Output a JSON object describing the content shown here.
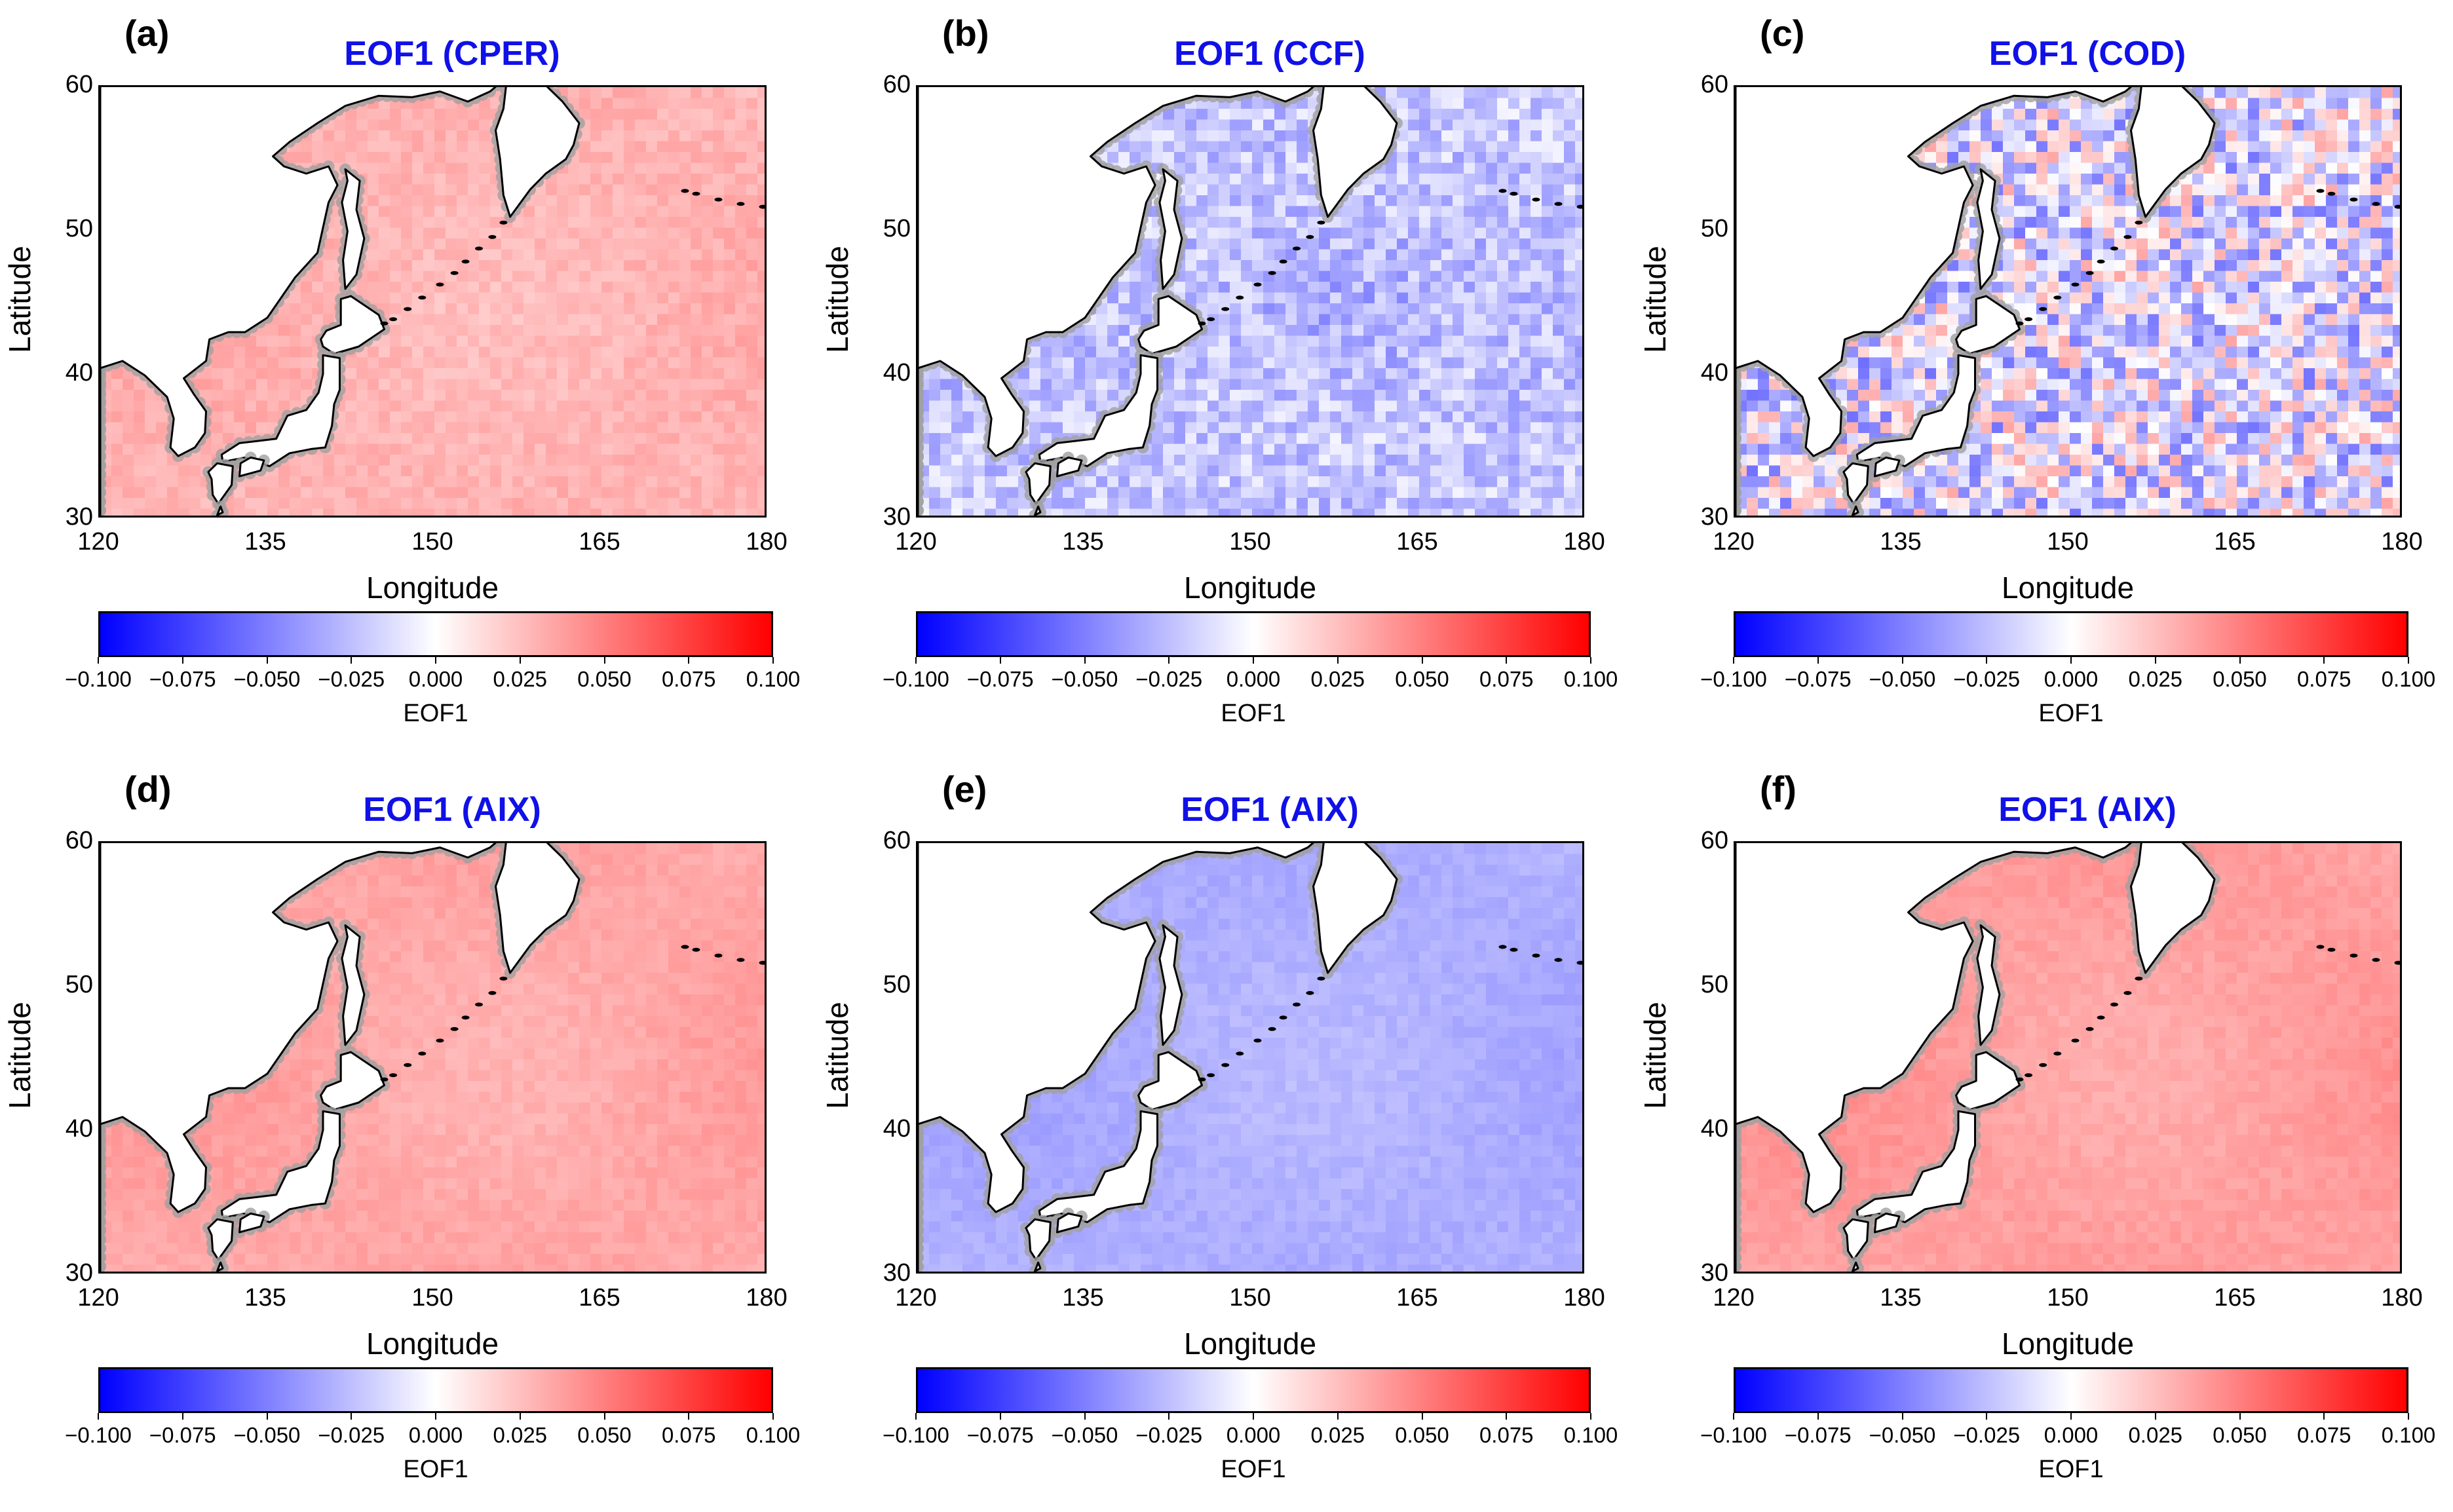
{
  "figure": {
    "colors": {
      "low": "#0000ff",
      "mid": "#ffffff",
      "high": "#ff0000",
      "title": "#1010e8",
      "land": "#ffffff",
      "coast_halo": "#a0a0a0"
    }
  },
  "chart_data": [
    {
      "type": "heatmap",
      "panel": "(a)",
      "title": "EOF1 (CPER)",
      "xlabel": "Longitude",
      "ylabel": "Latitude",
      "xticks": [
        "120",
        "135",
        "150",
        "165",
        "180"
      ],
      "yticks": [
        "30",
        "40",
        "50",
        "60"
      ],
      "xlim": [
        120,
        180
      ],
      "ylim": [
        30,
        60
      ],
      "colorbar": {
        "label": "EOF1",
        "range": [
          -0.1,
          0.1
        ],
        "ticks": [
          "−0.100",
          "−0.075",
          "−0.050",
          "−0.025",
          "0.000",
          "0.025",
          "0.050",
          "0.075",
          "0.100"
        ]
      },
      "field": {
        "mean": 0.03,
        "noise": 0.006
      }
    },
    {
      "type": "heatmap",
      "panel": "(b)",
      "title": "EOF1 (CCF)",
      "xlabel": "Longitude",
      "ylabel": "Latitude",
      "xticks": [
        "120",
        "135",
        "150",
        "165",
        "180"
      ],
      "yticks": [
        "30",
        "40",
        "50",
        "60"
      ],
      "xlim": [
        120,
        180
      ],
      "ylim": [
        30,
        60
      ],
      "colorbar": {
        "label": "EOF1",
        "range": [
          -0.1,
          0.1
        ],
        "ticks": [
          "−0.100",
          "−0.075",
          "−0.050",
          "−0.025",
          "0.000",
          "0.025",
          "0.050",
          "0.075",
          "0.100"
        ]
      },
      "field": {
        "mean": -0.022,
        "noise": 0.018
      }
    },
    {
      "type": "heatmap",
      "panel": "(c)",
      "title": "EOF1 (COD)",
      "xlabel": "Longitude",
      "ylabel": "Latitude",
      "xticks": [
        "120",
        "135",
        "150",
        "165",
        "180"
      ],
      "yticks": [
        "30",
        "40",
        "50",
        "60"
      ],
      "xlim": [
        120,
        180
      ],
      "ylim": [
        30,
        60
      ],
      "colorbar": {
        "label": "EOF1",
        "range": [
          -0.1,
          0.1
        ],
        "ticks": [
          "−0.100",
          "−0.075",
          "−0.050",
          "−0.025",
          "0.000",
          "0.025",
          "0.050",
          "0.075",
          "0.100"
        ]
      },
      "field": {
        "mean": -0.01,
        "noise": 0.045
      }
    },
    {
      "type": "heatmap",
      "panel": "(d)",
      "title": "EOF1 (AIX)",
      "xlabel": "Longitude",
      "ylabel": "Latitude",
      "xticks": [
        "120",
        "135",
        "150",
        "165",
        "180"
      ],
      "yticks": [
        "30",
        "40",
        "50",
        "60"
      ],
      "xlim": [
        120,
        180
      ],
      "ylim": [
        30,
        60
      ],
      "colorbar": {
        "label": "EOF1",
        "range": [
          -0.1,
          0.1
        ],
        "ticks": [
          "−0.100",
          "−0.075",
          "−0.050",
          "−0.025",
          "0.000",
          "0.025",
          "0.050",
          "0.075",
          "0.100"
        ]
      },
      "field": {
        "mean": 0.035,
        "noise": 0.004
      }
    },
    {
      "type": "heatmap",
      "panel": "(e)",
      "title": "EOF1 (AIX)",
      "xlabel": "Longitude",
      "ylabel": "Latitude",
      "xticks": [
        "120",
        "135",
        "150",
        "165",
        "180"
      ],
      "yticks": [
        "30",
        "40",
        "50",
        "60"
      ],
      "xlim": [
        120,
        180
      ],
      "ylim": [
        30,
        60
      ],
      "colorbar": {
        "label": "EOF1",
        "range": [
          -0.1,
          0.1
        ],
        "ticks": [
          "−0.100",
          "−0.075",
          "−0.050",
          "−0.025",
          "0.000",
          "0.025",
          "0.050",
          "0.075",
          "0.100"
        ]
      },
      "field": {
        "mean": -0.032,
        "noise": 0.004
      }
    },
    {
      "type": "heatmap",
      "panel": "(f)",
      "title": "EOF1 (AIX)",
      "xlabel": "Longitude",
      "ylabel": "Latitude",
      "xticks": [
        "120",
        "135",
        "150",
        "165",
        "180"
      ],
      "yticks": [
        "30",
        "40",
        "50",
        "60"
      ],
      "xlim": [
        120,
        180
      ],
      "ylim": [
        30,
        60
      ],
      "colorbar": {
        "label": "EOF1",
        "range": [
          -0.1,
          0.1
        ],
        "ticks": [
          "−0.100",
          "−0.075",
          "−0.050",
          "−0.025",
          "0.000",
          "0.025",
          "0.050",
          "0.075",
          "0.100"
        ]
      },
      "field": {
        "mean": 0.038,
        "noise": 0.004
      }
    }
  ]
}
